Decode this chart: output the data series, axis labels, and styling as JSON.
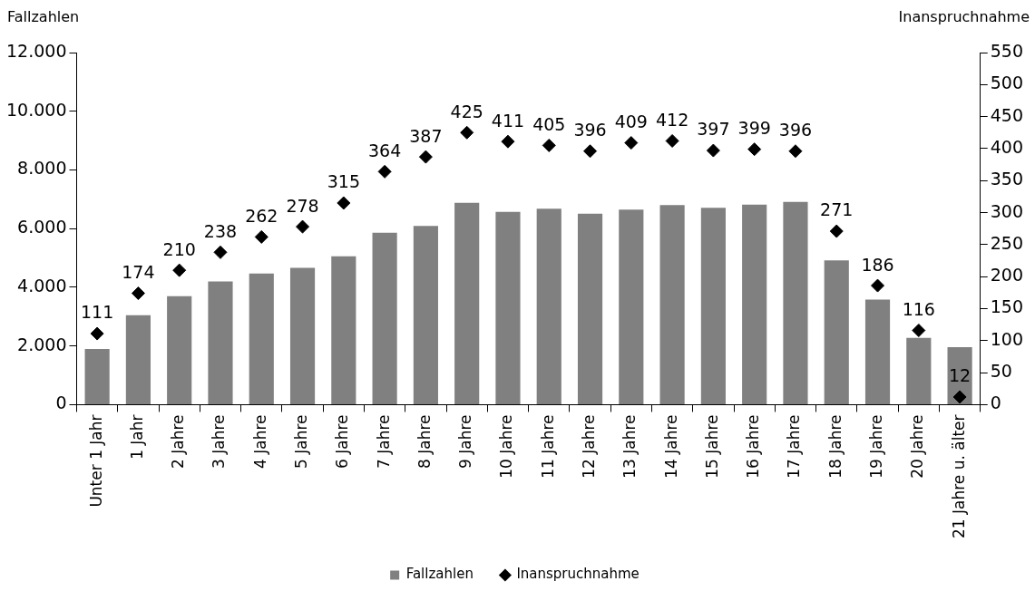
{
  "chart_data": {
    "type": "bar",
    "ylabel": "Fallzahlen",
    "y2label": "Inanspruchnahme",
    "categories": [
      "Unter 1 Jahr",
      "1 Jahr",
      "2 Jahre",
      "3 Jahre",
      "4 Jahre",
      "5 Jahre",
      "6 Jahre",
      "7 Jahre",
      "8 Jahre",
      "9 Jahre",
      "10 Jahre",
      "11 Jahre",
      "12 Jahre",
      "13 Jahre",
      "14 Jahre",
      "15 Jahre",
      "16 Jahre",
      "17 Jahre",
      "18 Jahre",
      "19 Jahre",
      "20 Jahre",
      "21 Jahre u. älter"
    ],
    "series": [
      {
        "name": "Fallzahlen",
        "color": "#808080",
        "values": [
          1900,
          3050,
          3700,
          4200,
          4470,
          4660,
          5060,
          5860,
          6090,
          6880,
          6570,
          6680,
          6510,
          6650,
          6800,
          6710,
          6820,
          6910,
          4920,
          3580,
          2280,
          1960
        ]
      },
      {
        "name": "Inanspruchnahme",
        "type": "scatter",
        "axis": "y2",
        "color": "#000000",
        "marker": "diamond",
        "values": [
          111,
          174,
          210,
          238,
          262,
          278,
          315,
          364,
          387,
          425,
          411,
          405,
          396,
          409,
          412,
          397,
          399,
          396,
          271,
          186,
          116,
          12
        ],
        "value_labels": [
          "111",
          "174",
          "210",
          "238",
          "262",
          "278",
          "315",
          "364",
          "387",
          "425",
          "411",
          "405",
          "396",
          "409",
          "412",
          "397",
          "399",
          "396",
          "271",
          "186",
          "116",
          "12"
        ]
      }
    ],
    "ylim": [
      0,
      12000
    ],
    "yticks": [
      {
        "value": 0,
        "label": "0"
      },
      {
        "value": 2000,
        "label": "2.000"
      },
      {
        "value": 4000,
        "label": "4.000"
      },
      {
        "value": 6000,
        "label": "6.000"
      },
      {
        "value": 8000,
        "label": "8.000"
      },
      {
        "value": 10000,
        "label": "10.000"
      },
      {
        "value": 12000,
        "label": "12.000"
      }
    ],
    "y2lim": [
      0,
      550
    ],
    "y2ticks": [
      0,
      50,
      100,
      150,
      200,
      250,
      300,
      350,
      400,
      450,
      500,
      550
    ],
    "grid": false,
    "legend": "bottom"
  }
}
